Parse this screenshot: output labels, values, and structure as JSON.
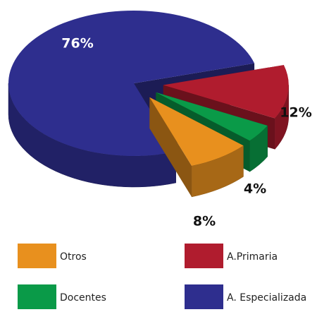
{
  "chart_data": {
    "type": "pie",
    "categories": [
      "A.Primaria",
      "Docentes",
      "Otros",
      "A. Especializada"
    ],
    "values": [
      12,
      4,
      8,
      76
    ],
    "value_labels": [
      "12%",
      "4%",
      "8%",
      "76%"
    ],
    "colors": [
      "#b01c2e",
      "#0a9a48",
      "#e8901e",
      "#2e2e8e"
    ],
    "legend": true
  }
}
